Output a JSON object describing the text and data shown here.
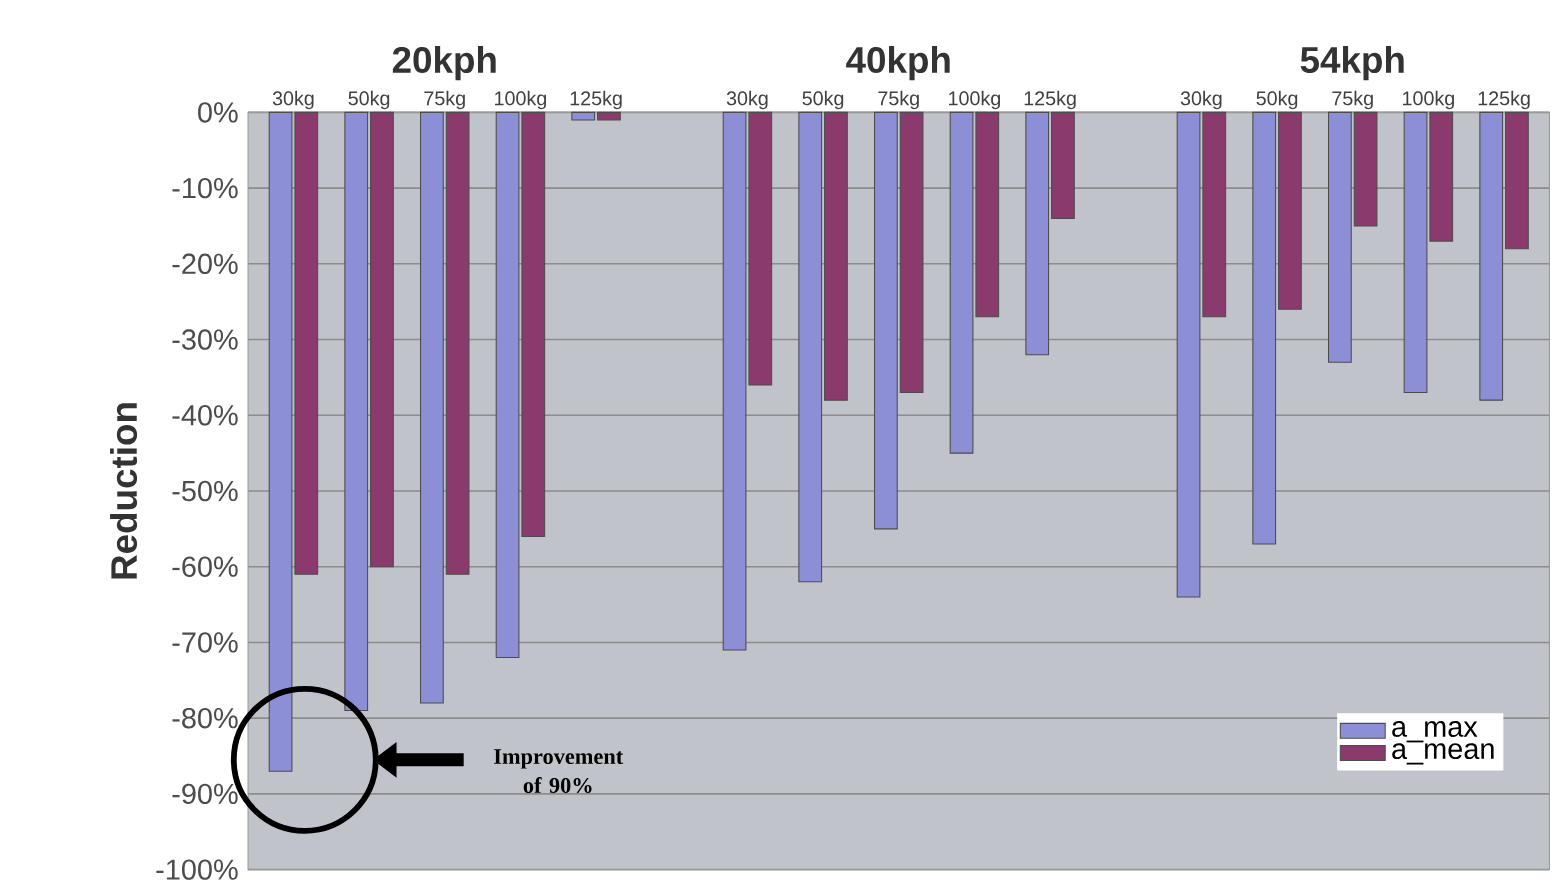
{
  "chart_data": {
    "type": "bar",
    "ylabel": "Reduction",
    "categories": [
      "30kg",
      "50kg",
      "75kg",
      "100kg",
      "125kg",
      null,
      "30kg",
      "50kg",
      "75kg",
      "100kg",
      "125kg",
      null,
      "30kg",
      "50kg",
      "75kg",
      "100kg",
      "125kg"
    ],
    "series": [
      {
        "name": "a_max",
        "color": "#8c8fd6",
        "values": [
          -87,
          -79,
          -78,
          -72,
          -1,
          null,
          -71,
          -62,
          -55,
          -45,
          -32,
          null,
          -64,
          -57,
          -33,
          -37,
          -38
        ]
      },
      {
        "name": "a_mean",
        "color": "#8b3a6e",
        "values": [
          -61,
          -60,
          -61,
          -56,
          -1,
          null,
          -36,
          -38,
          -37,
          -27,
          -14,
          null,
          -27,
          -26,
          -15,
          -17,
          -18
        ]
      }
    ],
    "ylim": [
      -100,
      0
    ],
    "yticks": [
      {
        "value": -100,
        "label": "-100%"
      },
      {
        "value": -90,
        "label": "-90%"
      },
      {
        "value": -80,
        "label": "-80%"
      },
      {
        "value": -70,
        "label": "-70%"
      },
      {
        "value": -60,
        "label": "-60%"
      },
      {
        "value": -50,
        "label": "-50%"
      },
      {
        "value": -40,
        "label": "-40%"
      },
      {
        "value": -30,
        "label": "-30%"
      },
      {
        "value": -20,
        "label": "-20%"
      },
      {
        "value": -10,
        "label": "-10%"
      },
      {
        "value": 0,
        "label": "0%"
      }
    ],
    "annotations": [
      "20kph",
      "40kph",
      "54kph",
      "Improvement of 90%"
    ],
    "grid": "y",
    "legend": "bottom right"
  }
}
